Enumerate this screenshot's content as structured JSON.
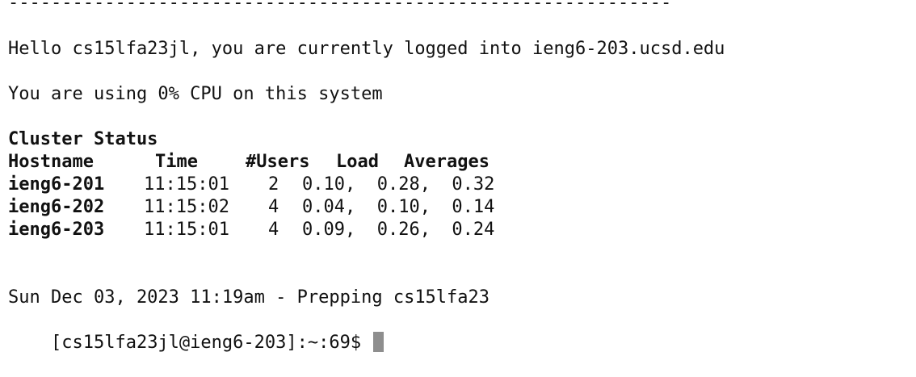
{
  "terminal": {
    "divider": "--------------------------------------------------------------",
    "greeting": "Hello cs15lfa23jl, you are currently logged into ieng6-203.ucsd.edu",
    "cpu_message": "You are using 0% CPU on this system",
    "cluster_title": "Cluster Status",
    "headers": {
      "hostname": "Hostname",
      "time": "Time",
      "users": "#Users",
      "load": "Load",
      "averages": "Averages"
    },
    "rows": [
      {
        "hostname": "ieng6-201",
        "time": "11:15:01",
        "users": "2",
        "load": "0.10,  0.28,  0.32"
      },
      {
        "hostname": "ieng6-202",
        "time": "11:15:02",
        "users": "4",
        "load": "0.04,  0.10,  0.14"
      },
      {
        "hostname": "ieng6-203",
        "time": "11:15:01",
        "users": "4",
        "load": "0.09,  0.26,  0.24"
      }
    ],
    "date_message": "Sun Dec 03, 2023 11:19am - Prepping cs15lfa23",
    "prompt": "[cs15lfa23jl@ieng6-203]:~:69$ "
  }
}
